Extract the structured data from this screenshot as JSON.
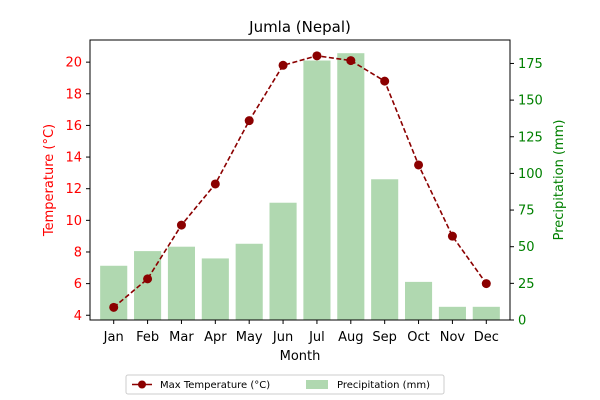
{
  "chart_data": {
    "type": "bar+line",
    "title": "Jumla (Nepal)",
    "xlabel": "Month",
    "ylabel_left": "Temperature (°C)",
    "ylabel_right": "Precipitation (mm)",
    "categories": [
      "Jan",
      "Feb",
      "Mar",
      "Apr",
      "May",
      "Jun",
      "Jul",
      "Aug",
      "Sep",
      "Oct",
      "Nov",
      "Dec"
    ],
    "y_left": {
      "min": 3.7,
      "max": 21.4,
      "ticks": [
        4,
        6,
        8,
        10,
        12,
        14,
        16,
        18,
        20
      ]
    },
    "y_right": {
      "min": 0,
      "max": 191,
      "ticks": [
        0,
        25,
        50,
        75,
        100,
        125,
        150,
        175
      ]
    },
    "series": [
      {
        "name": "Max Temperature (°C)",
        "kind": "line",
        "axis": "left",
        "color": "#8b0000",
        "values": [
          4.5,
          6.3,
          9.7,
          12.3,
          16.3,
          19.8,
          20.4,
          20.1,
          18.8,
          13.5,
          9.0,
          6.0
        ]
      },
      {
        "name": "Precipitation (mm)",
        "kind": "bar",
        "axis": "right",
        "color": "#b0d8b0",
        "values": [
          37,
          47,
          50,
          42,
          52,
          80,
          177,
          182,
          96,
          26,
          9,
          9
        ]
      }
    ],
    "legend_position": "bottom-center",
    "left_axis_color": "#ff0000",
    "right_axis_color": "#008000"
  }
}
